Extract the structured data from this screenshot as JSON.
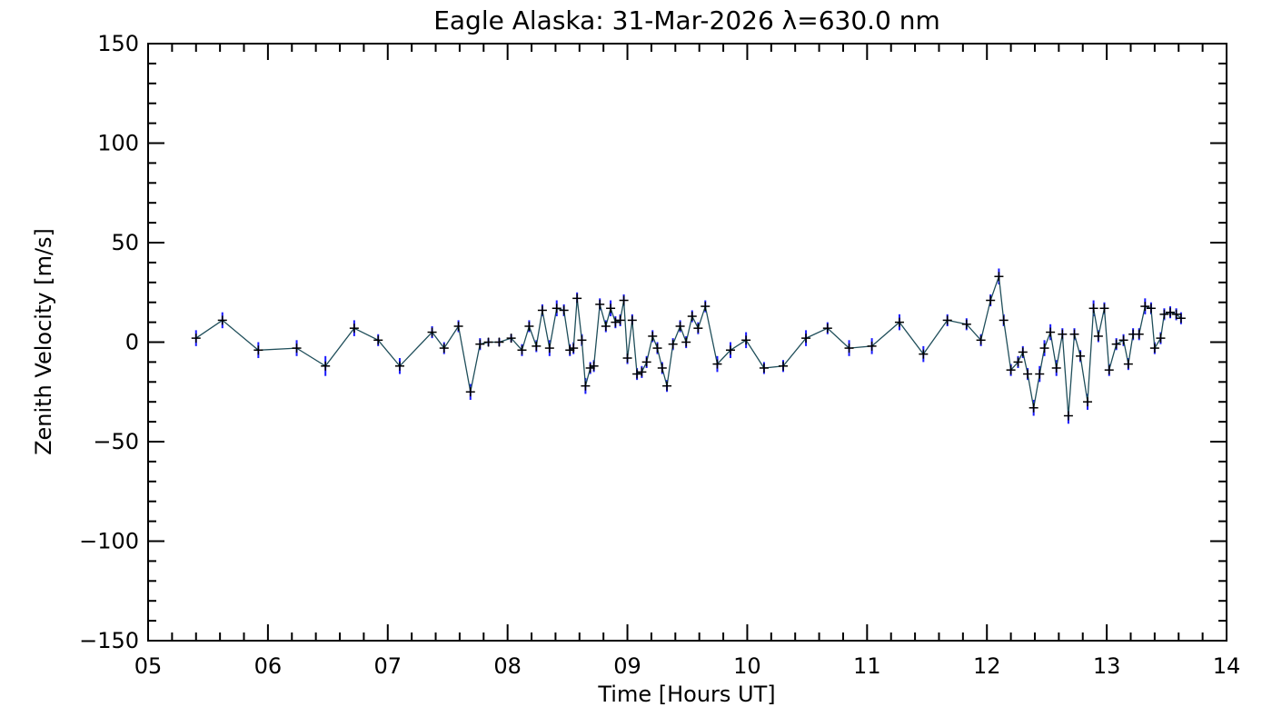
{
  "chart_data": {
    "type": "line",
    "title": "Eagle Alaska: 31-Mar-2026 λ=630.0 nm",
    "xlabel": "Time [Hours UT]",
    "ylabel": "Zenith Velocity [m/s]",
    "xlim": [
      5,
      14
    ],
    "ylim": [
      -150,
      150
    ],
    "x_ticks": [
      {
        "value": 5,
        "label": "05"
      },
      {
        "value": 6,
        "label": "06"
      },
      {
        "value": 7,
        "label": "07"
      },
      {
        "value": 8,
        "label": "08"
      },
      {
        "value": 9,
        "label": "09"
      },
      {
        "value": 10,
        "label": "10"
      },
      {
        "value": 11,
        "label": "11"
      },
      {
        "value": 12,
        "label": "12"
      },
      {
        "value": 13,
        "label": "13"
      },
      {
        "value": 14,
        "label": "14"
      }
    ],
    "y_ticks": [
      {
        "value": -150,
        "label": "−150"
      },
      {
        "value": -100,
        "label": "−100"
      },
      {
        "value": -50,
        "label": "−50"
      },
      {
        "value": 0,
        "label": "0"
      },
      {
        "value": 50,
        "label": "50"
      },
      {
        "value": 100,
        "label": "100"
      },
      {
        "value": 150,
        "label": "150"
      }
    ],
    "grid": false,
    "colors": {
      "line": "#1f4e5a",
      "error_bar": "#1a1aff",
      "marker": "#000000",
      "axis": "#000000"
    },
    "series": [
      {
        "name": "Zenith Velocity",
        "x": [
          5.4,
          5.62,
          5.92,
          6.24,
          6.48,
          6.72,
          6.92,
          7.1,
          7.37,
          7.47,
          7.59,
          7.69,
          7.77,
          7.84,
          7.93,
          8.03,
          8.12,
          8.18,
          8.24,
          8.29,
          8.35,
          8.41,
          8.47,
          8.52,
          8.55,
          8.58,
          8.62,
          8.65,
          8.69,
          8.72,
          8.77,
          8.82,
          8.86,
          8.9,
          8.94,
          8.97,
          9.0,
          9.04,
          9.08,
          9.12,
          9.16,
          9.21,
          9.25,
          9.29,
          9.33,
          9.38,
          9.44,
          9.49,
          9.54,
          9.59,
          9.65,
          9.75,
          9.86,
          9.99,
          10.14,
          10.3,
          10.49,
          10.67,
          10.85,
          11.04,
          11.27,
          11.47,
          11.67,
          11.83,
          11.95,
          12.03,
          12.1,
          12.14,
          12.2,
          12.26,
          12.3,
          12.34,
          12.39,
          12.44,
          12.48,
          12.53,
          12.58,
          12.63,
          12.68,
          12.73,
          12.78,
          12.84,
          12.89,
          12.93,
          12.98,
          13.02,
          13.08,
          13.14,
          13.18,
          13.22,
          13.27,
          13.32,
          13.37,
          13.4,
          13.45,
          13.48,
          13.53,
          13.58,
          13.62
        ],
        "y": [
          2,
          11,
          -4,
          -3,
          -12,
          7,
          1,
          -12,
          5,
          -3,
          8,
          -25,
          -1,
          0,
          0,
          2,
          -4,
          8,
          -2,
          16,
          -3,
          17,
          16,
          -4,
          -3,
          22,
          1,
          -22,
          -13,
          -12,
          19,
          8,
          17,
          10,
          11,
          21,
          -8,
          11,
          -16,
          -15,
          -10,
          3,
          -3,
          -13,
          -22,
          -1,
          8,
          0,
          13,
          7,
          18,
          -11,
          -4,
          1,
          -13,
          -12,
          2,
          7,
          -3,
          -2,
          10,
          -6,
          11,
          9,
          1,
          21,
          33,
          11,
          -14,
          -10,
          -5,
          -16,
          -33,
          -16,
          -3,
          5,
          -13,
          4,
          -37,
          4,
          -7,
          -30,
          17,
          3,
          17,
          -14,
          -1,
          1,
          -11,
          4,
          4,
          18,
          17,
          -3,
          2,
          14,
          15,
          14,
          12
        ],
        "errors": [
          4,
          4,
          4,
          4,
          5,
          4,
          3,
          4,
          3,
          3,
          3,
          4,
          3,
          2,
          2,
          2,
          3,
          3,
          3,
          3,
          4,
          4,
          3,
          3,
          3,
          3,
          3,
          4,
          3,
          3,
          3,
          3,
          4,
          3,
          3,
          3,
          3,
          3,
          3,
          3,
          3,
          3,
          3,
          3,
          3,
          3,
          3,
          3,
          3,
          3,
          3,
          4,
          4,
          4,
          3,
          3,
          4,
          3,
          4,
          4,
          4,
          4,
          3,
          3,
          3,
          3,
          4,
          3,
          3,
          3,
          3,
          3,
          4,
          4,
          4,
          4,
          4,
          3,
          4,
          3,
          3,
          4,
          4,
          3,
          3,
          3,
          3,
          3,
          3,
          3,
          3,
          4,
          3,
          3,
          3,
          3,
          3,
          3,
          3
        ]
      }
    ]
  }
}
